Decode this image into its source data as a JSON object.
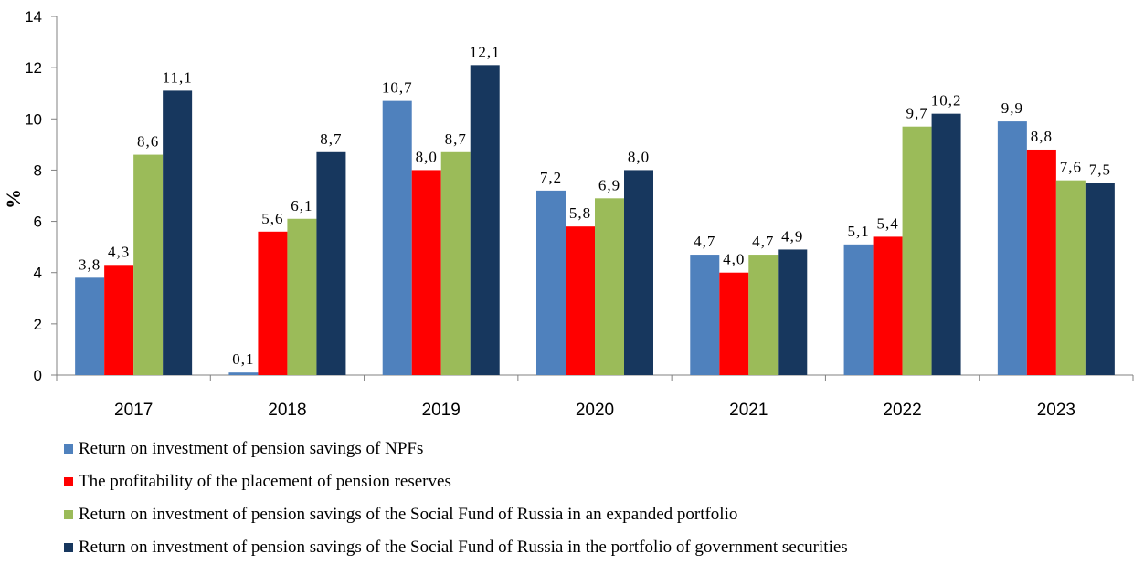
{
  "chart_data": {
    "type": "bar",
    "ylabel": "%",
    "ylim": [
      0,
      14
    ],
    "yticks": [
      0,
      2,
      4,
      6,
      8,
      10,
      12,
      14
    ],
    "categories": [
      "2017",
      "2018",
      "2019",
      "2020",
      "2021",
      "2022",
      "2023"
    ],
    "legend_position": "bottom",
    "grid": false,
    "series": [
      {
        "name": "Return on investment of pension savings of NPFs",
        "color": "#4F81BD",
        "values": [
          3.8,
          0.1,
          10.7,
          7.2,
          4.7,
          5.1,
          9.9
        ],
        "labels": [
          "3,8",
          "0,1",
          "10,7",
          "7,2",
          "4,7",
          "5,1",
          "9,9"
        ]
      },
      {
        "name": "The profitability of the placement of pension reserves",
        "color": "#FF0000",
        "values": [
          4.3,
          5.6,
          8.0,
          5.8,
          4.0,
          5.4,
          8.8
        ],
        "labels": [
          "4,3",
          "5,6",
          "8,0",
          "5,8",
          "4,0",
          "5,4",
          "8,8"
        ]
      },
      {
        "name": "Return on investment of pension savings of the Social Fund of Russia in an expanded portfolio",
        "color": "#9BBB59",
        "values": [
          8.6,
          6.1,
          8.7,
          6.9,
          4.7,
          9.7,
          7.6
        ],
        "labels": [
          "8,6",
          "6,1",
          "8,7",
          "6,9",
          "4,7",
          "9,7",
          "7,6"
        ]
      },
      {
        "name": "Return on investment of pension savings of the Social Fund of Russia in the portfolio of government securities",
        "color": "#17375E",
        "values": [
          11.1,
          8.7,
          12.1,
          8.0,
          4.9,
          10.2,
          7.5
        ],
        "labels": [
          "11,1",
          "8,7",
          "12,1",
          "8,0",
          "4,9",
          "10,2",
          "7,5"
        ]
      }
    ]
  }
}
